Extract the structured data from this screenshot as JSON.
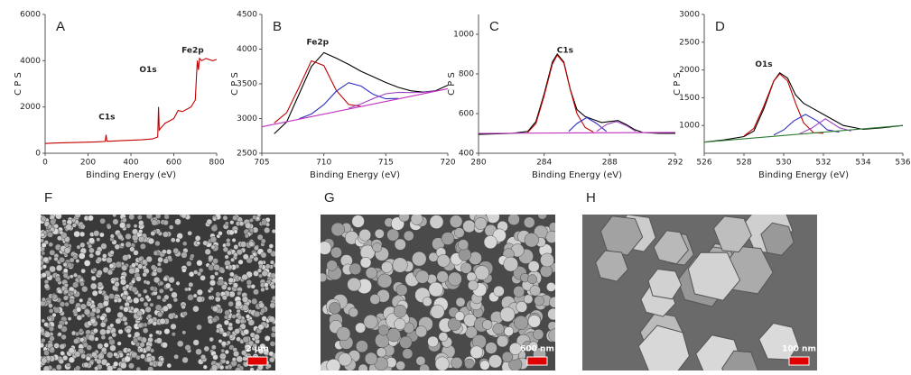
{
  "chart_data": [
    {
      "type": "line",
      "panel": "A",
      "x_label": "Binding Energy (eV)",
      "y_label": "C P S",
      "xlim": [
        0,
        800
      ],
      "xticks": [
        0,
        200,
        400,
        600,
        800
      ],
      "ylim": [
        0,
        6000
      ],
      "yticks": [
        0,
        2000,
        4000,
        6000
      ],
      "annotations": [
        "C1s",
        "O1s",
        "Fe2p"
      ],
      "series": [
        {
          "color": "#c00000",
          "x": [
            0,
            40,
            80,
            120,
            160,
            200,
            240,
            280,
            284,
            288,
            300,
            350,
            400,
            450,
            500,
            525,
            529,
            532,
            540,
            560,
            580,
            600,
            620,
            640,
            680,
            700,
            706,
            710,
            715,
            720,
            730,
            750,
            780,
            800
          ],
          "values": [
            420,
            440,
            450,
            460,
            470,
            480,
            490,
            510,
            800,
            520,
            520,
            540,
            560,
            580,
            620,
            700,
            2000,
            1000,
            1100,
            1300,
            1400,
            1500,
            1850,
            1800,
            2000,
            2300,
            3400,
            4000,
            3600,
            4100,
            4000,
            4100,
            4000,
            4050
          ]
        }
      ]
    },
    {
      "type": "line",
      "panel": "B",
      "x_label": "Binding Energy (eV)",
      "y_label": "C P S",
      "xlim": [
        705,
        720
      ],
      "xticks": [
        705,
        710,
        715,
        720
      ],
      "ylim": [
        2500,
        4500
      ],
      "yticks": [
        2500,
        3000,
        3500,
        4000,
        4500
      ],
      "annotations": [
        "Fe2p"
      ],
      "series": [
        {
          "color": "#000000",
          "x": [
            706,
            707,
            708,
            709,
            710,
            711,
            712,
            713,
            714,
            715,
            716,
            717,
            718,
            719,
            720
          ],
          "values": [
            2780,
            2950,
            3350,
            3750,
            3950,
            3870,
            3780,
            3680,
            3600,
            3520,
            3450,
            3400,
            3380,
            3400,
            3480
          ]
        },
        {
          "color": "#c00000",
          "x": [
            706,
            707,
            708,
            709,
            710,
            711,
            712,
            713
          ],
          "values": [
            2936,
            3085,
            3451,
            3832,
            3763,
            3406,
            3203,
            3175
          ]
        },
        {
          "color": "#2f2fc0",
          "x": [
            708,
            709,
            710,
            711,
            712,
            713,
            714,
            715,
            716
          ],
          "values": [
            2996,
            3065,
            3200,
            3394,
            3517,
            3467,
            3347,
            3285,
            3289
          ]
        },
        {
          "color": "#a040c0",
          "x": [
            712,
            713,
            714,
            715,
            716,
            717,
            718,
            719
          ],
          "values": [
            3148,
            3210,
            3290,
            3357,
            3378,
            3374,
            3376,
            3397
          ]
        },
        {
          "color": "#c030c0",
          "x": [
            705,
            720
          ],
          "values": [
            2880,
            3430
          ]
        }
      ]
    },
    {
      "type": "line",
      "panel": "C",
      "x_label": "Binding Energy (eV)",
      "y_label": "C P S",
      "xlim": [
        280,
        292
      ],
      "xticks": [
        280,
        284,
        288,
        292
      ],
      "ylim": [
        400,
        1100
      ],
      "yticks": [
        400,
        600,
        800,
        1000
      ],
      "annotations": [
        "C1s"
      ],
      "series": [
        {
          "color": "#000000",
          "x": [
            280,
            282,
            283,
            283.5,
            284,
            284.5,
            284.8,
            285.2,
            285.6,
            286,
            286.5,
            287,
            287.5,
            288,
            288.5,
            289,
            289.5,
            290,
            291,
            292
          ],
          "values": [
            495,
            500,
            510,
            560,
            700,
            860,
            900,
            860,
            720,
            620,
            585,
            570,
            555,
            560,
            565,
            545,
            520,
            505,
            500,
            500
          ]
        },
        {
          "color": "#c00000",
          "x": [
            283,
            283.5,
            284,
            284.5,
            284.8,
            285.2,
            285.6,
            286,
            286.5,
            287
          ],
          "values": [
            505,
            550,
            690,
            850,
            895,
            855,
            720,
            600,
            530,
            507
          ]
        },
        {
          "color": "#2f2fc0",
          "x": [
            285.5,
            286,
            286.6,
            287.2,
            287.8
          ],
          "values": [
            510,
            550,
            580,
            550,
            510
          ]
        },
        {
          "color": "#a040c0",
          "x": [
            287.2,
            287.8,
            288.4,
            289,
            289.6
          ],
          "values": [
            510,
            545,
            560,
            540,
            510
          ]
        },
        {
          "color": "#c030c0",
          "x": [
            280,
            292
          ],
          "values": [
            500,
            505
          ]
        }
      ]
    },
    {
      "type": "line",
      "panel": "D",
      "x_label": "Binding Energy (eV)",
      "y_label": "C P S",
      "xlim": [
        526,
        536
      ],
      "xticks": [
        526,
        528,
        530,
        532,
        534,
        536
      ],
      "ylim": [
        500,
        3000
      ],
      "yticks": [
        1000,
        1500,
        2000,
        2500,
        3000
      ],
      "annotations": [
        "O1s"
      ],
      "series": [
        {
          "color": "#000000",
          "x": [
            526,
            527,
            528,
            528.5,
            529,
            529.5,
            529.8,
            530.2,
            530.6,
            531,
            531.5,
            532,
            532.5,
            533,
            534,
            535,
            536
          ],
          "values": [
            700,
            740,
            800,
            900,
            1300,
            1800,
            1950,
            1850,
            1550,
            1400,
            1300,
            1200,
            1100,
            1000,
            930,
            960,
            1000
          ]
        },
        {
          "color": "#c00000",
          "x": [
            528,
            528.5,
            529,
            529.5,
            529.8,
            530.2,
            530.6,
            531,
            531.5,
            532
          ],
          "values": [
            810,
            950,
            1350,
            1800,
            1930,
            1800,
            1400,
            1050,
            870,
            860
          ]
        },
        {
          "color": "#2f2fc0",
          "x": [
            529.5,
            530,
            530.5,
            531.1,
            531.7,
            532.2,
            532.8
          ],
          "values": [
            830,
            920,
            1080,
            1200,
            1080,
            920,
            880
          ]
        },
        {
          "color": "#a040c0",
          "x": [
            530.8,
            531.4,
            532.1,
            532.8,
            533.4
          ],
          "values": [
            850,
            950,
            1120,
            960,
            900
          ]
        },
        {
          "color": "#2e7d32",
          "x": [
            526,
            536
          ],
          "values": [
            700,
            1000
          ]
        }
      ]
    }
  ],
  "images": [
    {
      "label": "F",
      "scale_bar": "2 μm"
    },
    {
      "label": "G",
      "scale_bar": "600 nm"
    },
    {
      "label": "H",
      "scale_bar": "100 nm"
    }
  ]
}
